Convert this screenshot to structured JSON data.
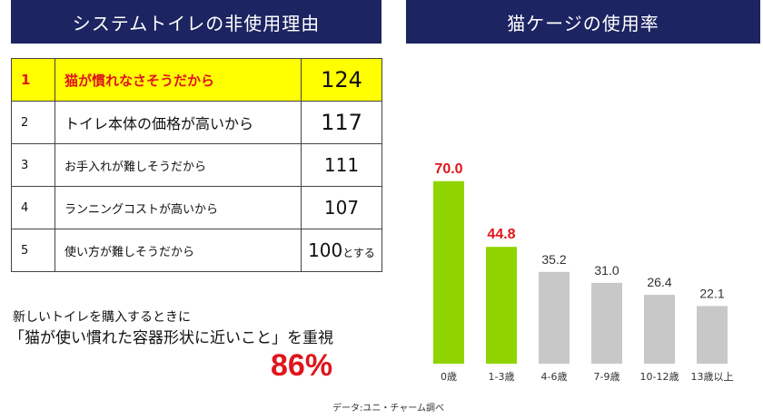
{
  "left_panel": {
    "title": "システムトイレの非使用理由",
    "rows": [
      {
        "rank": "1",
        "reason": "猫が慣れなさそうだから",
        "count": "124",
        "suffix": ""
      },
      {
        "rank": "2",
        "reason": "トイレ本体の価格が高いから",
        "count": "117",
        "suffix": ""
      },
      {
        "rank": "3",
        "reason": "お手入れが難しそうだから",
        "count": "111",
        "suffix": ""
      },
      {
        "rank": "4",
        "reason": "ランニングコストが高いから",
        "count": "107",
        "suffix": ""
      },
      {
        "rank": "5",
        "reason": "使い方が難しそうだから",
        "count": "100",
        "suffix": "とする"
      }
    ],
    "note_line1": "新しいトイレを購入するときに",
    "note_line2": "「猫が使い慣れた容器形状に近いこと」を重視",
    "highlight_percent": "86%"
  },
  "right_panel": {
    "title": "猫ケージの使用率"
  },
  "source": "データ:ユニ・チャーム調べ",
  "colors": {
    "banner": "#1c2461",
    "highlight_bar": "#8fd400",
    "normal_bar": "#c8c8c8",
    "highlight_label": "#e0151b",
    "highlight_row": "#ffff00"
  },
  "chart_data": {
    "type": "bar",
    "categories": [
      "0歳",
      "1-3歳",
      "4-6歳",
      "7-9歳",
      "10-12歳",
      "13歳以上"
    ],
    "values": [
      70.0,
      44.8,
      35.2,
      31.0,
      26.4,
      22.1
    ],
    "value_labels": [
      "70.0",
      "44.8",
      "35.2",
      "31.0",
      "26.4",
      "22.1"
    ],
    "highlighted": [
      true,
      true,
      false,
      false,
      false,
      false
    ],
    "ylim": [
      0,
      80
    ],
    "grid": false
  }
}
